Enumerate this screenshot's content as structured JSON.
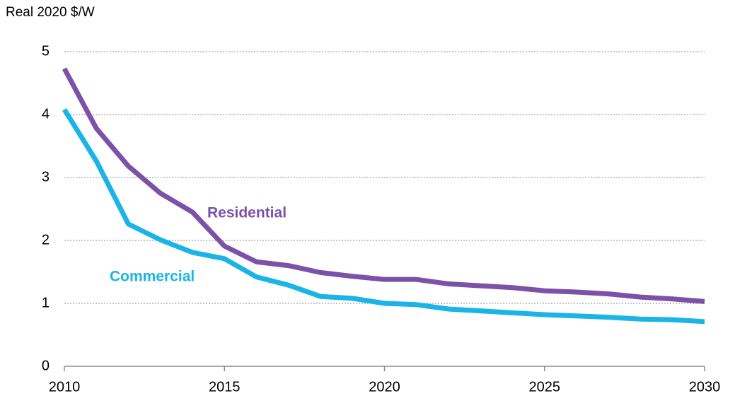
{
  "chart_data": {
    "type": "line",
    "y_axis_label": "Real 2020 $/W",
    "x": [
      2010,
      2011,
      2012,
      2013,
      2014,
      2015,
      2016,
      2017,
      2018,
      2019,
      2020,
      2021,
      2022,
      2023,
      2024,
      2025,
      2026,
      2027,
      2028,
      2029,
      2030
    ],
    "series": [
      {
        "name": "Residential",
        "color": "#7b52a8",
        "values": [
          4.73,
          3.78,
          3.18,
          2.75,
          2.45,
          1.91,
          1.66,
          1.6,
          1.49,
          1.43,
          1.38,
          1.38,
          1.31,
          1.28,
          1.25,
          1.2,
          1.18,
          1.15,
          1.1,
          1.07,
          1.03
        ]
      },
      {
        "name": "Commercial",
        "color": "#1ab4e6",
        "values": [
          4.08,
          3.26,
          2.26,
          2.01,
          1.81,
          1.71,
          1.42,
          1.29,
          1.11,
          1.08,
          1.0,
          0.98,
          0.91,
          0.88,
          0.85,
          0.82,
          0.8,
          0.78,
          0.75,
          0.74,
          0.71
        ]
      }
    ],
    "xlim": [
      2010,
      2030
    ],
    "xticks": [
      2010,
      2015,
      2020,
      2025,
      2030
    ],
    "ylim": [
      0,
      5
    ],
    "yticks": [
      0,
      1,
      2,
      3,
      4,
      5
    ],
    "grid": true
  }
}
